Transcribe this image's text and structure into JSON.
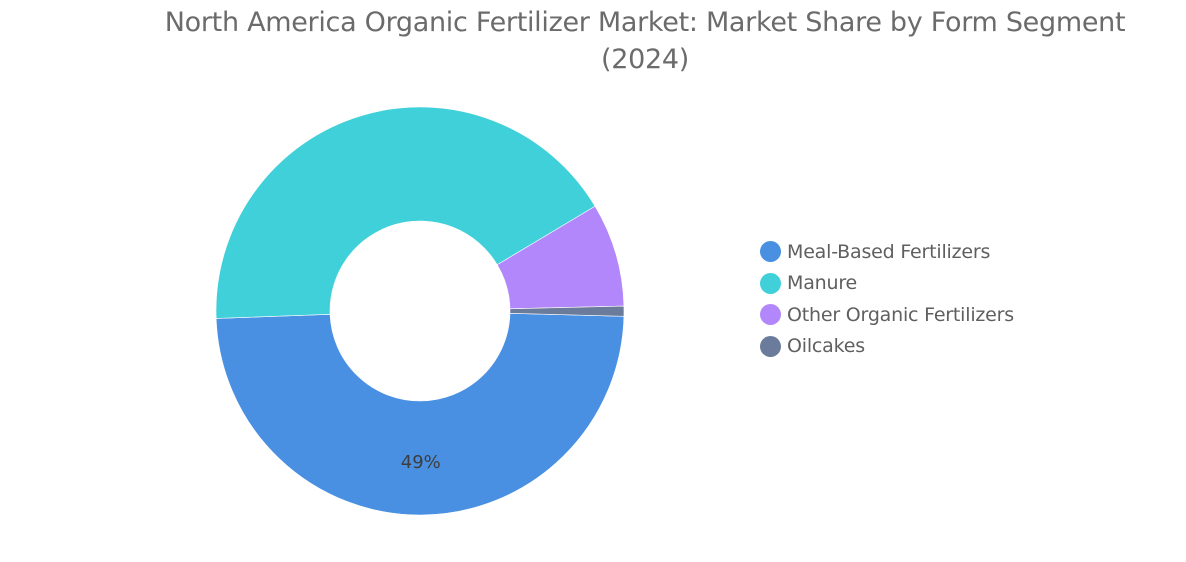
{
  "chart_data": {
    "type": "pie",
    "variant": "donut",
    "title_lines": [
      "North America Organic Fertilizer Market: Market Share by Form Segment",
      "(2024)"
    ],
    "series": [
      {
        "name": "Meal-Based Fertilizers",
        "value": 49,
        "color": "#4a90e2"
      },
      {
        "name": "Manure",
        "value": 42,
        "color": "#40d0da"
      },
      {
        "name": "Other Organic Fertilizers",
        "value": 8.2,
        "color": "#b387fc"
      },
      {
        "name": "Oilcakes",
        "value": 0.8,
        "color": "#6b7b9c"
      }
    ],
    "data_labels": [
      {
        "series": "Meal-Based Fertilizers",
        "text": "49%"
      }
    ],
    "legend_position": "right"
  }
}
